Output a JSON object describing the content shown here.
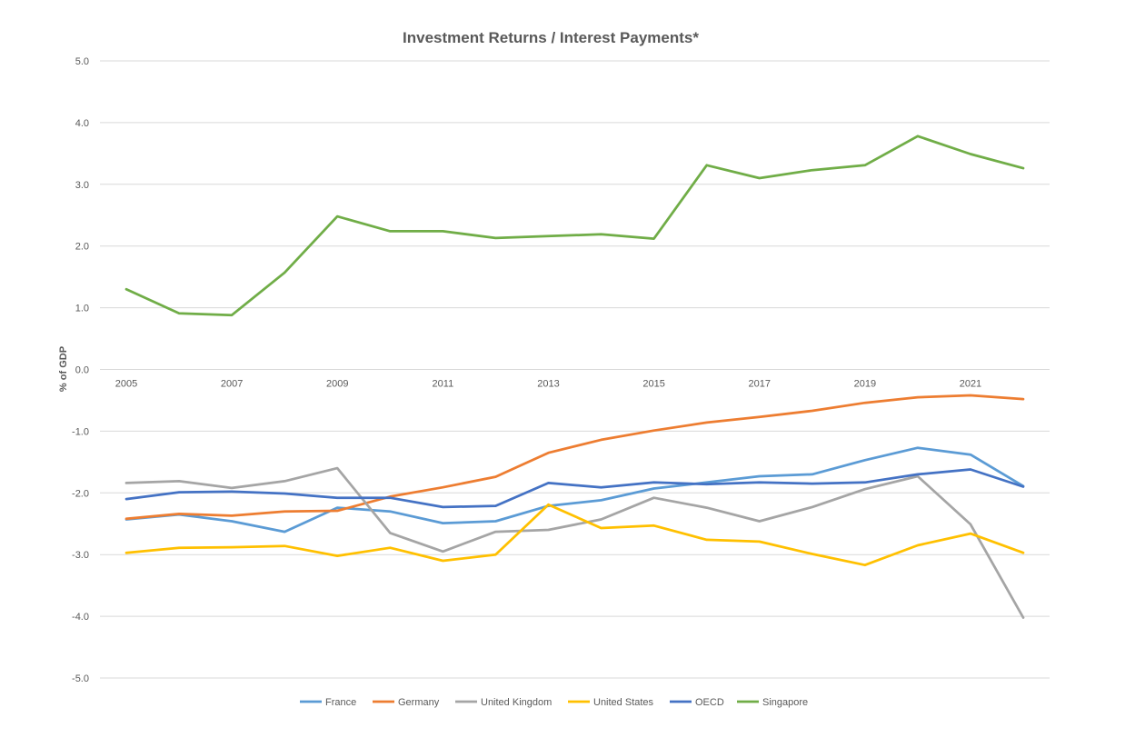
{
  "chart_data": {
    "type": "line",
    "title": "Investment Returns / Interest Payments*",
    "ylabel": "% of GDP",
    "xlabel": "",
    "ylim": [
      -5.0,
      5.0
    ],
    "y_ticks": [
      "5.0",
      "4.0",
      "3.0",
      "2.0",
      "1.0",
      "0.0",
      "-1.0",
      "-2.0",
      "-3.0",
      "-4.0",
      "-5.0"
    ],
    "x": [
      2005,
      2006,
      2007,
      2008,
      2009,
      2010,
      2011,
      2012,
      2013,
      2014,
      2015,
      2016,
      2017,
      2018,
      2019,
      2020,
      2021,
      2022
    ],
    "x_tick_labels": [
      "2005",
      "2007",
      "2009",
      "2011",
      "2013",
      "2015",
      "2017",
      "2019",
      "2021"
    ],
    "grid": true,
    "legend_position": "bottom",
    "series": [
      {
        "name": "France",
        "color": "#5B9BD5",
        "values": [
          -2.43,
          -2.35,
          -2.46,
          -2.63,
          -2.24,
          -2.3,
          -2.49,
          -2.46,
          -2.21,
          -2.12,
          -1.93,
          -1.83,
          -1.73,
          -1.7,
          -1.47,
          -1.27,
          -1.38,
          -1.89
        ]
      },
      {
        "name": "Germany",
        "color": "#ED7D31",
        "values": [
          -2.42,
          -2.34,
          -2.37,
          -2.3,
          -2.29,
          -2.06,
          -1.91,
          -1.74,
          -1.35,
          -1.14,
          -0.99,
          -0.86,
          -0.77,
          -0.67,
          -0.54,
          -0.45,
          -0.42,
          -0.48
        ]
      },
      {
        "name": "United Kingdom",
        "color": "#A5A5A5",
        "values": [
          -1.84,
          -1.81,
          -1.92,
          -1.81,
          -1.6,
          -2.65,
          -2.95,
          -2.63,
          -2.6,
          -2.43,
          -2.08,
          -2.24,
          -2.46,
          -2.23,
          -1.94,
          -1.73,
          -2.51,
          -4.02
        ]
      },
      {
        "name": "United States",
        "color": "#FFC000",
        "values": [
          -2.97,
          -2.89,
          -2.88,
          -2.86,
          -3.02,
          -2.89,
          -3.1,
          -3.0,
          -2.19,
          -2.57,
          -2.53,
          -2.76,
          -2.79,
          -2.99,
          -3.17,
          -2.85,
          -2.66,
          -2.97
        ]
      },
      {
        "name": "OECD",
        "color": "#4472C4",
        "values": [
          -2.1,
          -1.99,
          -1.98,
          -2.01,
          -2.08,
          -2.08,
          -2.23,
          -2.21,
          -1.84,
          -1.91,
          -1.83,
          -1.86,
          -1.83,
          -1.85,
          -1.83,
          -1.7,
          -1.62,
          -1.9
        ]
      },
      {
        "name": "Singapore",
        "color": "#70AD47",
        "values": [
          1.3,
          0.91,
          0.88,
          1.57,
          2.48,
          2.24,
          2.24,
          2.13,
          2.16,
          2.19,
          2.12,
          3.31,
          3.1,
          3.23,
          3.31,
          3.78,
          3.49,
          3.26
        ]
      }
    ]
  }
}
